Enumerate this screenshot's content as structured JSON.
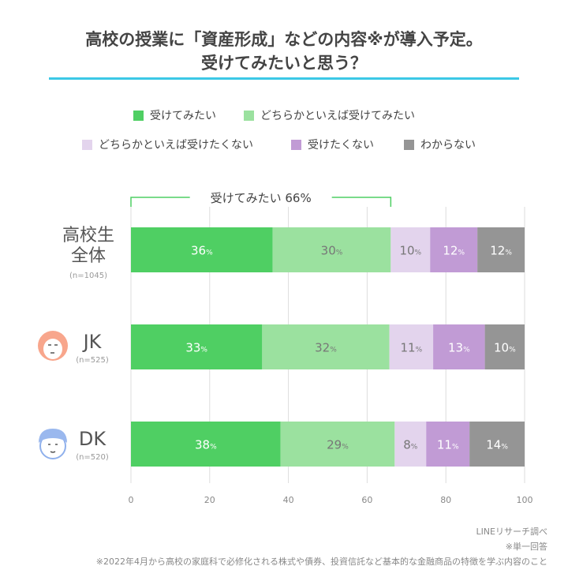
{
  "title_line1": "高校の授業に「資産形成」などの内容※が導入予定。",
  "title_line2": "受けてみたいと思う？",
  "accent_color": "#3cc8e6",
  "chart_data": {
    "type": "bar",
    "orientation": "horizontal",
    "stacked": true,
    "categories": [
      {
        "label_line1": "高校生",
        "label_line2": "全体",
        "n": "(n=1045)",
        "icon": ""
      },
      {
        "label_line1": "JK",
        "label_line2": "",
        "n": "(n=525)",
        "icon": "girl-face-icon"
      },
      {
        "label_line1": "DK",
        "label_line2": "",
        "n": "(n=520)",
        "icon": "boy-face-icon"
      }
    ],
    "series": [
      {
        "name": "受けてみたい",
        "color": "#4fcf63",
        "label_color": "#ffffff",
        "values": [
          36,
          33,
          38
        ]
      },
      {
        "name": "どちらかといえば受けてみたい",
        "color": "#9be19f",
        "label_color": "#777777",
        "values": [
          30,
          32,
          29
        ]
      },
      {
        "name": "どちらかといえば受けたくない",
        "color": "#e3d4ed",
        "label_color": "#777777",
        "values": [
          10,
          11,
          8
        ]
      },
      {
        "name": "受けたくない",
        "color": "#c19bd5",
        "label_color": "#ffffff",
        "values": [
          12,
          13,
          11
        ]
      },
      {
        "name": "わからない",
        "color": "#959595",
        "label_color": "#ffffff",
        "values": [
          12,
          10,
          14
        ]
      }
    ],
    "unit": "%",
    "xlim": [
      0,
      100
    ],
    "xticks": [
      0,
      20,
      40,
      60,
      80,
      100
    ],
    "grid": true,
    "legend_position": "top",
    "annotation": "受けてみたい 66%"
  },
  "footer": {
    "source": "LINEリサーチ調べ",
    "note1": "※単一回答",
    "note2": "※2022年4月から高校の家庭科で必修化される株式や債券、投資信託など基本的な金融商品の特徴を学ぶ内容のこと"
  }
}
